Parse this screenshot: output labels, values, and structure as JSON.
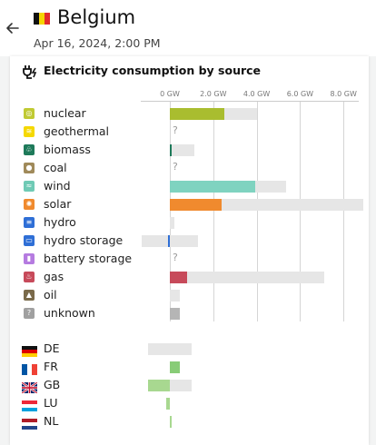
{
  "header": {
    "title": "Belgium",
    "datetime": "Apr 16, 2024, 2:00 PM"
  },
  "panel": {
    "title": "Electricity consumption by source"
  },
  "axis": {
    "ticks": [
      "0 GW",
      "2.0 GW",
      "4.0 GW",
      "6.0 GW",
      "8.0 GW"
    ],
    "max_gw": 8.9
  },
  "sources": [
    {
      "label": "nuclear",
      "icon": "nuclear-icon",
      "color": "#a9bd2f",
      "icon_bg": "#c0ca33",
      "prod_gw": 2.5,
      "cap_gw": 4.0
    },
    {
      "label": "geothermal",
      "icon": "geothermal-icon",
      "color": "#f5d800",
      "icon_bg": "#f5d800",
      "unknown": "?"
    },
    {
      "label": "biomass",
      "icon": "biomass-icon",
      "color": "#1e7a5a",
      "icon_bg": "#1e7a5a",
      "prod_gw": 0.1,
      "cap_gw": 1.15
    },
    {
      "label": "coal",
      "icon": "coal-icon",
      "color": "#a08a5a",
      "icon_bg": "#a08a5a",
      "unknown": "?"
    },
    {
      "label": "wind",
      "icon": "wind-icon",
      "color": "#7fd3c0",
      "icon_bg": "#6fcab5",
      "prod_gw": 3.95,
      "cap_gw": 5.35
    },
    {
      "label": "solar",
      "icon": "solar-icon",
      "color": "#f08a2e",
      "icon_bg": "#f08a2e",
      "prod_gw": 2.4,
      "cap_gw": 8.9
    },
    {
      "label": "hydro",
      "icon": "hydro-icon",
      "color": "#2f6fd6",
      "icon_bg": "#2f6fd6",
      "prod_gw": 0.0,
      "cap_gw": 0.2
    },
    {
      "label": "hydro storage",
      "icon": "hydro-storage-icon",
      "color": "#2f6fd6",
      "icon_bg": "#2f6fd6",
      "prod_gw": -0.1,
      "cap_min_gw": -1.3,
      "cap_gw": 1.3
    },
    {
      "label": "battery storage",
      "icon": "battery-storage-icon",
      "color": "#b57be0",
      "icon_bg": "#b57be0",
      "unknown": "?"
    },
    {
      "label": "gas",
      "icon": "gas-icon",
      "color": "#c74a5a",
      "icon_bg": "#c74a5a",
      "prod_gw": 0.8,
      "cap_gw": 7.1
    },
    {
      "label": "oil",
      "icon": "oil-icon",
      "color": "#7a6a4a",
      "icon_bg": "#7a6a4a",
      "prod_gw": 0.0,
      "cap_gw": 0.45
    },
    {
      "label": "unknown",
      "icon": "unknown-icon",
      "color": "#b5b5b5",
      "icon_bg": "#a0a0a0",
      "prod_gw": 0.45,
      "cap_gw": 0.45
    }
  ],
  "exchanges": [
    {
      "label": "DE",
      "flag": "de-flag-icon",
      "color": "#e6e6e6",
      "prod_gw": 0,
      "cap_min_gw": -1.0,
      "cap_gw": 1.0
    },
    {
      "label": "FR",
      "flag": "fr-flag-icon",
      "color": "#88cc77",
      "prod_gw": 0.45,
      "cap_gw": 0.45
    },
    {
      "label": "GB",
      "flag": "gb-flag-icon",
      "color": "#a8d890",
      "prod_gw": -1.0,
      "cap_min_gw": -1.0,
      "cap_gw": 1.0
    },
    {
      "label": "LU",
      "flag": "lu-flag-icon",
      "color": "#a8d890",
      "prod_gw": -0.15,
      "cap_gw": 0
    },
    {
      "label": "NL",
      "flag": "nl-flag-icon",
      "color": "#a8d890",
      "prod_gw": 0.1,
      "cap_gw": 0
    }
  ]
}
